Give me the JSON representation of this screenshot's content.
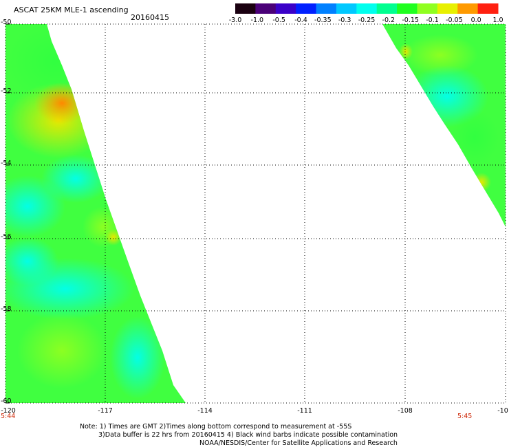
{
  "header": {
    "title": "ASCAT 25KM MLE-1 ascending",
    "date": "20160415"
  },
  "colorbar": {
    "labels": [
      "-3.0",
      "-1.0",
      "-0.5",
      "-0.4",
      "-0.35",
      "-0.3",
      "-0.25",
      "-0.2",
      "-0.15",
      "-0.1",
      "-0.05",
      "0.0",
      "1.0"
    ],
    "colors": [
      "#1a0010",
      "#4a0078",
      "#3a00c8",
      "#0020ff",
      "#0080ff",
      "#00c8ff",
      "#00ffee",
      "#00ff90",
      "#20ff20",
      "#90ff20",
      "#e8f000",
      "#ff9a00",
      "#ff2010"
    ]
  },
  "map": {
    "lat_labels": [
      "-50",
      "-52",
      "-54",
      "-56",
      "-58",
      "-60"
    ],
    "lon_labels": [
      "-120",
      "-117",
      "-114",
      "-111",
      "-108",
      "-10"
    ],
    "lat_range": [
      -60,
      -50
    ],
    "lon_range": [
      -120,
      -105
    ],
    "grid": "dotted",
    "swath_colors": {
      "cyan": "#00ffee",
      "aqua": "#30ffb0",
      "green": "#30ff30",
      "lime": "#80ff20",
      "yellow": "#e8f000",
      "orange": "#ff9a00"
    }
  },
  "times": {
    "left": "5:44",
    "right": "5:45"
  },
  "notes": {
    "line1": "Note: 1) Times are GMT 2)Times along bottom correspond to measurement at -55S",
    "line2": "3)Data buffer is 22 hrs from 20160415 4) Black wind barbs indicate possible contamination",
    "line3": "NOAA/NESDIS/Center for Satellite Applications and Research"
  }
}
